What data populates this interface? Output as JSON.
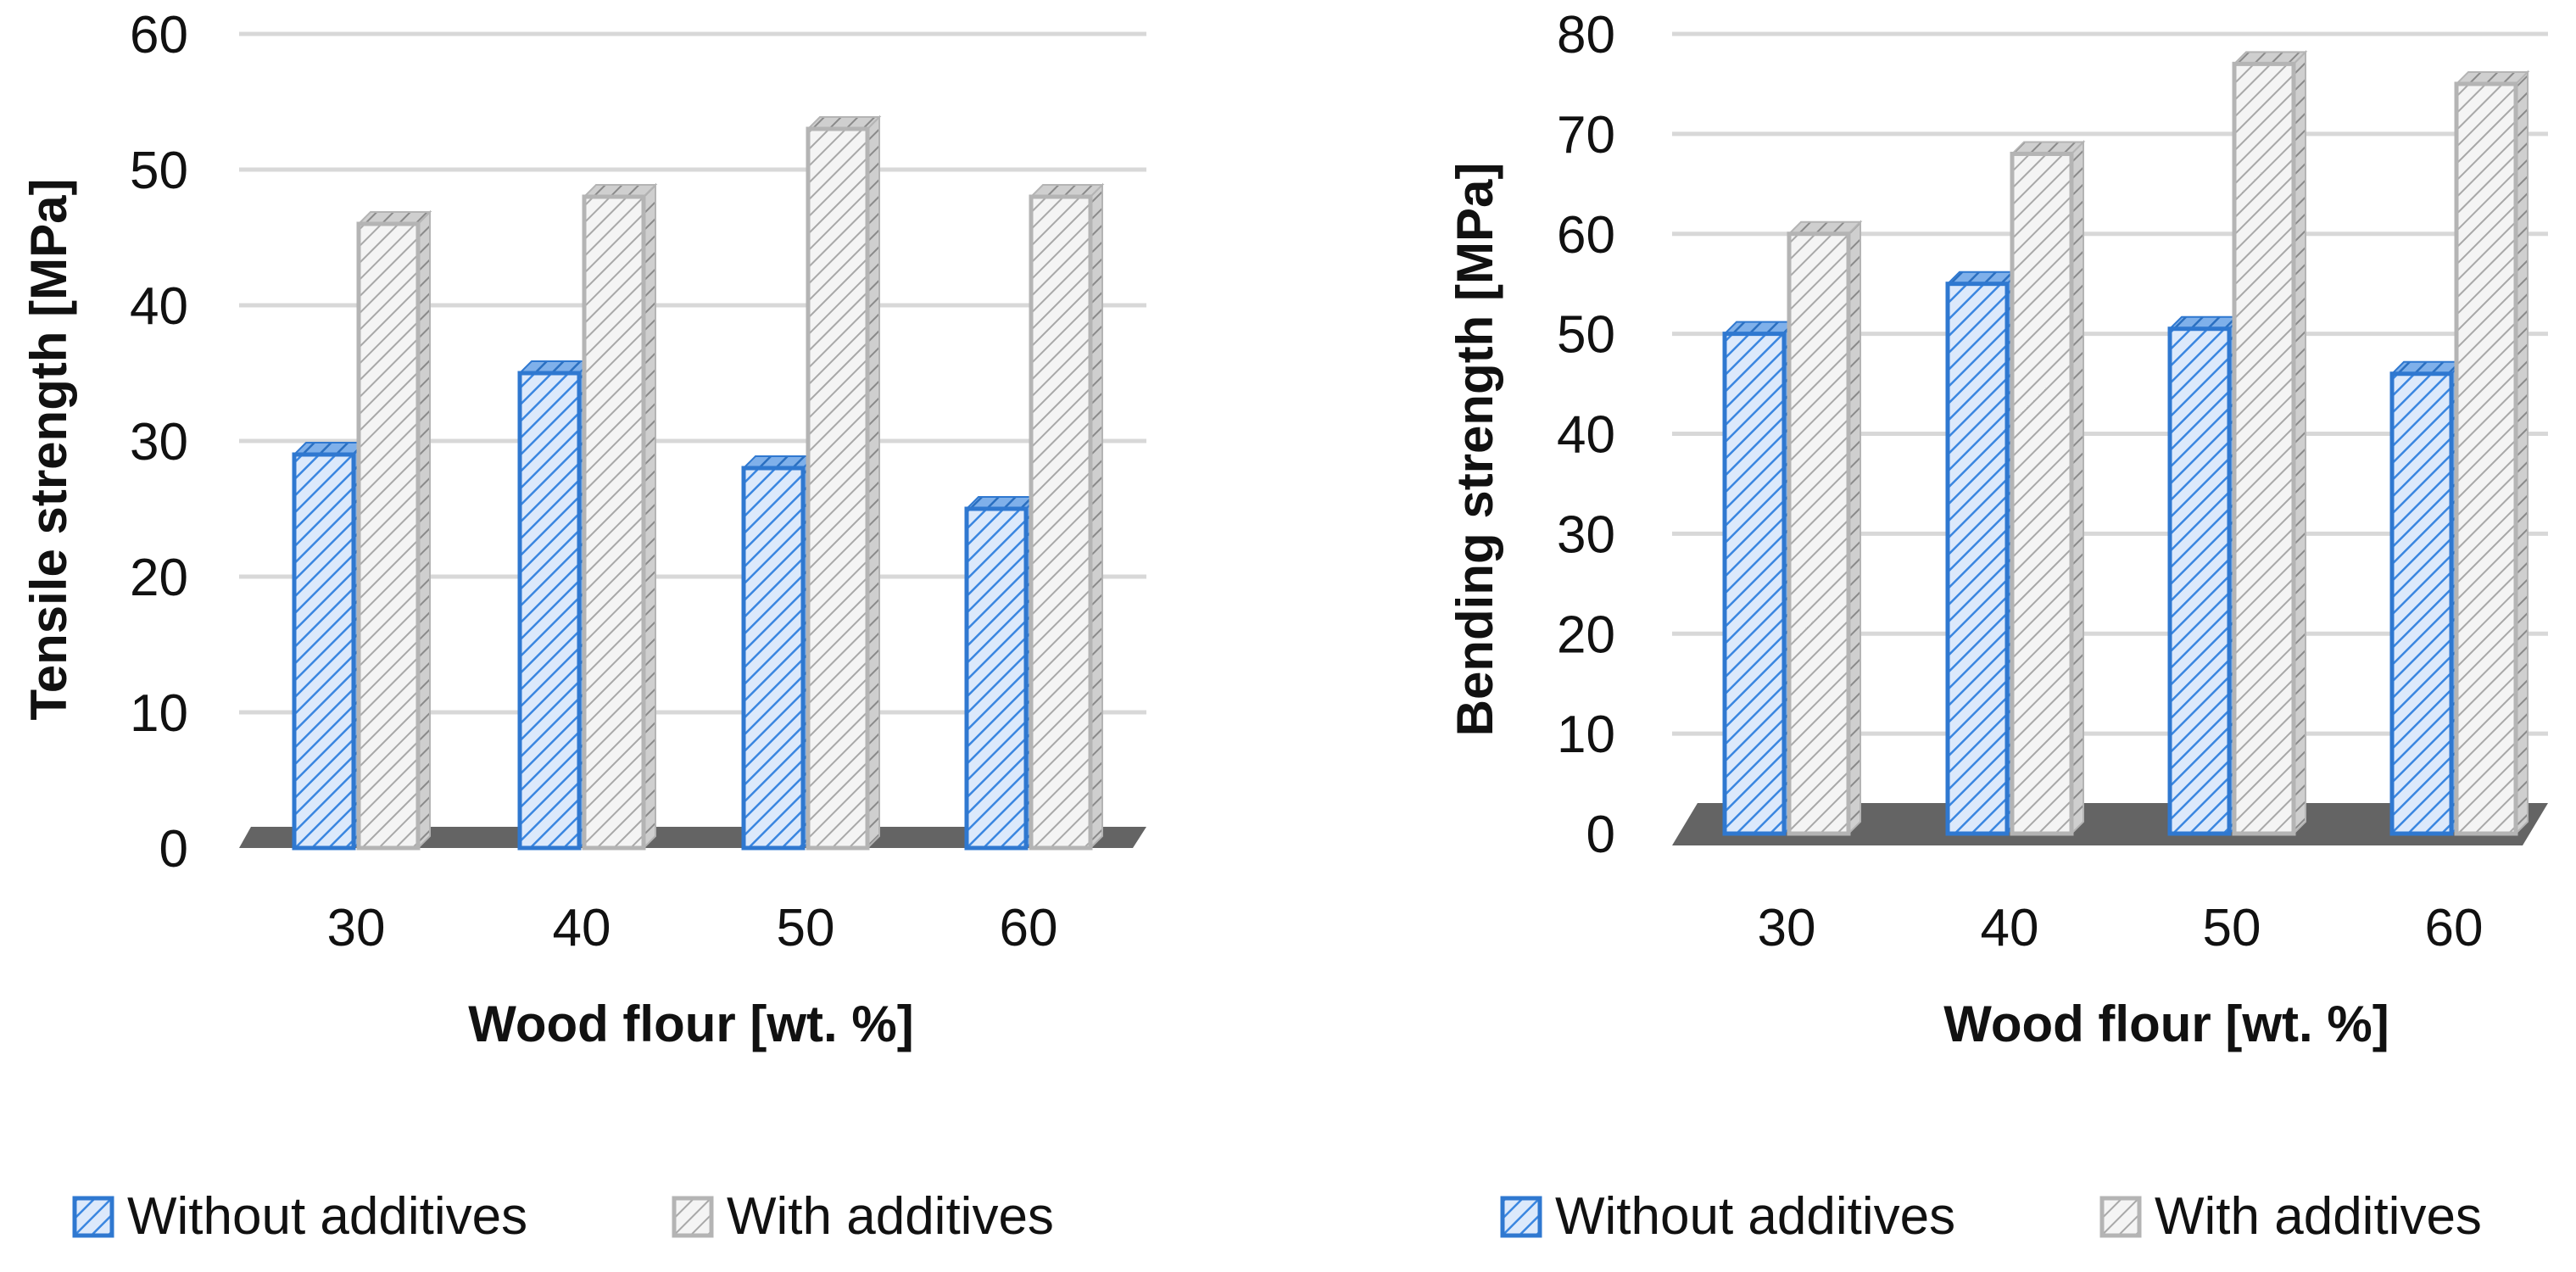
{
  "chart_data": [
    {
      "type": "bar",
      "categories": [
        "30",
        "40",
        "50",
        "60"
      ],
      "series": [
        {
          "name": "Without additives",
          "values": [
            29,
            35,
            28,
            25
          ]
        },
        {
          "name": "With additives",
          "values": [
            46,
            48,
            53,
            48
          ]
        }
      ],
      "xlabel": "Wood flour [wt. %]",
      "ylabel": "Tensile strength [MPa]",
      "ylim": [
        0,
        60
      ],
      "yticks": [
        "0",
        "10",
        "20",
        "30",
        "40",
        "50",
        "60"
      ],
      "grid": true,
      "legend": "bottom"
    },
    {
      "type": "bar",
      "categories": [
        "30",
        "40",
        "50",
        "60"
      ],
      "series": [
        {
          "name": "Without additives",
          "values": [
            50,
            55,
            50.5,
            46
          ]
        },
        {
          "name": "With additives",
          "values": [
            60,
            68,
            77,
            75
          ]
        }
      ],
      "xlabel": "Wood flour [wt. %]",
      "ylabel": "Bending strength [MPa]",
      "ylim": [
        0,
        80
      ],
      "yticks": [
        "0",
        "10",
        "20",
        "30",
        "40",
        "50",
        "60",
        "70",
        "80"
      ],
      "grid": true,
      "legend": "bottom"
    }
  ],
  "colors": {
    "without_fill": "#dce9fb",
    "without_stroke": "#2f78d0",
    "without_hatch": "#3a86e0",
    "with_fill": "#f4f4f4",
    "with_stroke": "#b4b4b4",
    "with_hatch": "#9a9a9a",
    "floor": "#646464",
    "grid": "#d8d8d8"
  },
  "icons": {
    "without": "hatched-square-blue-icon",
    "with": "hatched-square-gray-icon"
  }
}
